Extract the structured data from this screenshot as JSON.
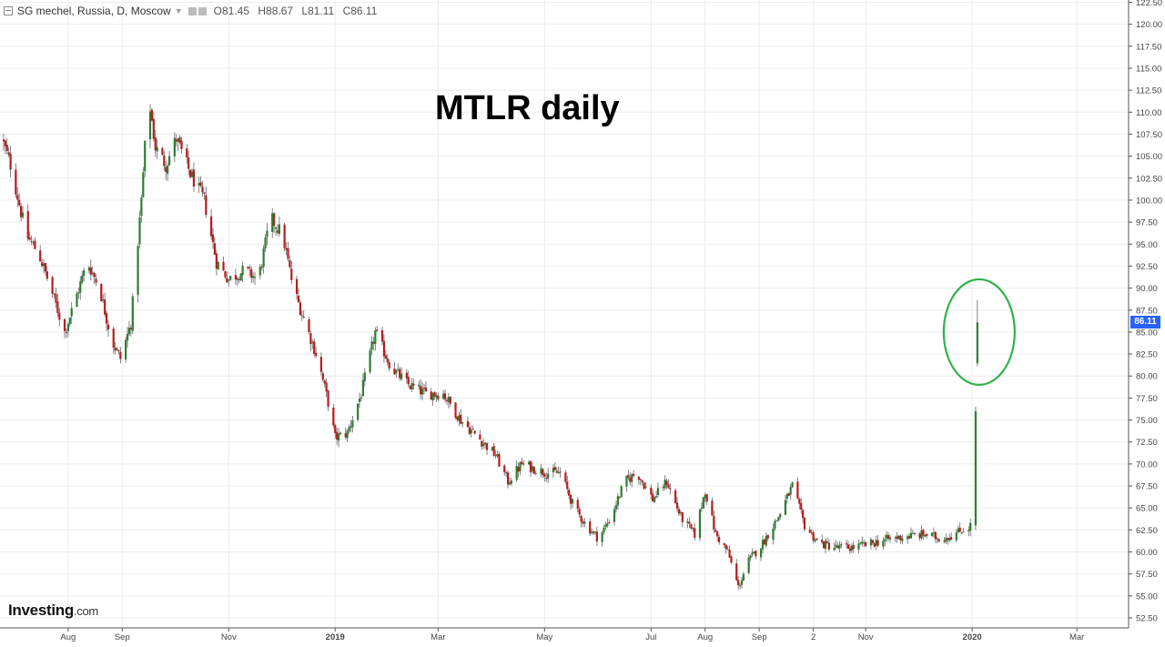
{
  "header": {
    "symbol_line": "SG mechel, Russia, D, Moscow",
    "open": "O81.45",
    "high": "H88.67",
    "low": "L81.11",
    "close": "C86.11"
  },
  "overlay_title": "MTLR daily",
  "logo": {
    "main": "Investing",
    "suffix": ".com"
  },
  "last_price_label": "86.11",
  "colors": {
    "up": "#2e7d32",
    "down": "#b71c1c",
    "wick": "#666666",
    "grid": "#ececec",
    "annotation": "#2fb34a",
    "price_tag": "#2962ff"
  },
  "chart_data": {
    "type": "candlestick",
    "title": "MTLR daily",
    "ylim": [
      51.5,
      123.0
    ],
    "y_ticks": [
      "52.50",
      "55.00",
      "57.50",
      "60.00",
      "62.50",
      "65.00",
      "67.50",
      "70.00",
      "72.50",
      "75.00",
      "77.50",
      "80.00",
      "82.50",
      "85.00",
      "87.50",
      "90.00",
      "92.50",
      "95.00",
      "97.50",
      "100.00",
      "102.50",
      "105.00",
      "107.50",
      "110.00",
      "112.50",
      "115.00",
      "117.50",
      "120.00",
      "122.50"
    ],
    "x_ticks": [
      {
        "label": "Aug",
        "date": "2018-08-01",
        "bold": false
      },
      {
        "label": "Sep",
        "date": "2018-09-01",
        "bold": false
      },
      {
        "label": "Nov",
        "date": "2018-11-01",
        "bold": false
      },
      {
        "label": "2019",
        "date": "2019-01-01",
        "bold": true
      },
      {
        "label": "Mar",
        "date": "2019-03-01",
        "bold": false
      },
      {
        "label": "May",
        "date": "2019-05-01",
        "bold": false
      },
      {
        "label": "Jul",
        "date": "2019-07-01",
        "bold": false
      },
      {
        "label": "Aug",
        "date": "2019-08-01",
        "bold": false
      },
      {
        "label": "Sep",
        "date": "2019-09-01",
        "bold": false
      },
      {
        "label": "2",
        "date": "2019-10-02",
        "bold": false
      },
      {
        "label": "Nov",
        "date": "2019-11-01",
        "bold": false
      },
      {
        "label": "2020",
        "date": "2020-01-01",
        "bold": true
      },
      {
        "label": "Mar",
        "date": "2020-03-01",
        "bold": false
      }
    ],
    "path_anchors": [
      [
        "2018-06-24",
        107
      ],
      [
        "2018-06-29",
        104
      ],
      [
        "2018-07-08",
        96
      ],
      [
        "2018-07-15",
        94
      ],
      [
        "2018-07-22",
        90
      ],
      [
        "2018-07-30",
        85
      ],
      [
        "2018-08-04",
        88
      ],
      [
        "2018-08-12",
        93
      ],
      [
        "2018-08-19",
        90
      ],
      [
        "2018-08-26",
        84
      ],
      [
        "2018-08-31",
        82
      ],
      [
        "2018-09-06",
        86
      ],
      [
        "2018-09-12",
        100
      ],
      [
        "2018-09-16",
        112
      ],
      [
        "2018-09-20",
        106
      ],
      [
        "2018-09-26",
        104
      ],
      [
        "2018-10-02",
        107
      ],
      [
        "2018-10-10",
        103
      ],
      [
        "2018-10-18",
        100
      ],
      [
        "2018-10-25",
        93
      ],
      [
        "2018-11-01",
        91
      ],
      [
        "2018-11-10",
        92
      ],
      [
        "2018-11-18",
        91
      ],
      [
        "2018-11-25",
        98
      ],
      [
        "2018-12-02",
        96
      ],
      [
        "2018-12-08",
        90
      ],
      [
        "2018-12-15",
        86
      ],
      [
        "2018-12-22",
        82
      ],
      [
        "2018-12-28",
        77
      ],
      [
        "2019-01-01",
        73
      ],
      [
        "2019-01-08",
        73.5
      ],
      [
        "2019-01-16",
        78
      ],
      [
        "2019-01-24",
        85
      ],
      [
        "2019-02-02",
        81
      ],
      [
        "2019-02-12",
        79
      ],
      [
        "2019-02-22",
        78
      ],
      [
        "2019-03-04",
        78
      ],
      [
        "2019-03-14",
        75
      ],
      [
        "2019-03-24",
        73
      ],
      [
        "2019-04-03",
        71
      ],
      [
        "2019-04-10",
        68
      ],
      [
        "2019-04-18",
        70
      ],
      [
        "2019-05-02",
        69
      ],
      [
        "2019-05-10",
        69
      ],
      [
        "2019-05-18",
        65
      ],
      [
        "2019-05-25",
        63
      ],
      [
        "2019-06-01",
        61.5
      ],
      [
        "2019-06-08",
        64
      ],
      [
        "2019-06-16",
        68
      ],
      [
        "2019-06-23",
        69
      ],
      [
        "2019-07-02",
        66
      ],
      [
        "2019-07-10",
        68
      ],
      [
        "2019-07-18",
        64
      ],
      [
        "2019-07-26",
        62
      ],
      [
        "2019-08-01",
        67
      ],
      [
        "2019-08-07",
        62
      ],
      [
        "2019-08-14",
        60
      ],
      [
        "2019-08-20",
        56
      ],
      [
        "2019-08-26",
        59
      ],
      [
        "2019-09-03",
        61
      ],
      [
        "2019-09-12",
        64
      ],
      [
        "2019-09-20",
        67.5
      ],
      [
        "2019-09-27",
        63
      ],
      [
        "2019-10-05",
        61
      ],
      [
        "2019-10-15",
        60.5
      ],
      [
        "2019-10-25",
        60.5
      ],
      [
        "2019-11-05",
        61
      ],
      [
        "2019-11-15",
        61.5
      ],
      [
        "2019-11-25",
        61.8
      ],
      [
        "2019-12-05",
        62
      ],
      [
        "2019-12-14",
        61.5
      ],
      [
        "2019-12-22",
        62
      ],
      [
        "2019-12-31",
        63
      ]
    ],
    "special_candles": [
      {
        "date": "2020-01-03",
        "open": 63.0,
        "high": 76.5,
        "low": 62.5,
        "close": 76.0
      },
      {
        "date": "2020-01-04",
        "open": 81.45,
        "high": 88.67,
        "low": 81.11,
        "close": 86.11
      }
    ],
    "annotation": {
      "type": "ellipse",
      "date": "2020-01-04",
      "center_price": 85.0,
      "price_half_height": 6.0
    }
  }
}
